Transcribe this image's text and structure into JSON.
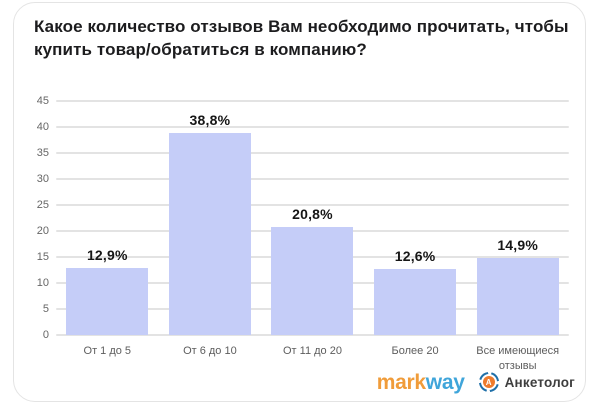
{
  "header": {
    "title": "Какое количество отзывов Вам необходимо прочитать, чтобы купить товар/обратиться в компанию?"
  },
  "chart_data": {
    "type": "bar",
    "title": "Какое количество отзывов Вам необходимо прочитать, чтобы купить товар/обратиться в компанию?",
    "categories": [
      "От 1 до 5",
      "От 6 до 10",
      "От 11 до 20",
      "Более 20",
      "Все имеющиеся отзывы"
    ],
    "values": [
      12.9,
      38.8,
      20.8,
      12.6,
      14.9
    ],
    "value_labels": [
      "12,9%",
      "38,8%",
      "20,8%",
      "12,6%",
      "14,9%"
    ],
    "ylabel": "",
    "xlabel": "",
    "ylim": [
      0,
      45
    ],
    "yticks": [
      0,
      5,
      10,
      15,
      20,
      25,
      30,
      35,
      40,
      45
    ],
    "grid": true,
    "legend": "none",
    "bar_color": "#c5cdf8"
  },
  "footer": {
    "markway": {
      "part1": "mark",
      "part2": "way",
      "color1": "#f09c3a",
      "color2": "#3fa5da"
    },
    "anketolog": {
      "label": "Анкетолог",
      "letter": "A",
      "ring_color": "#1e6fa8",
      "core_color": "#ee7b2d"
    }
  }
}
